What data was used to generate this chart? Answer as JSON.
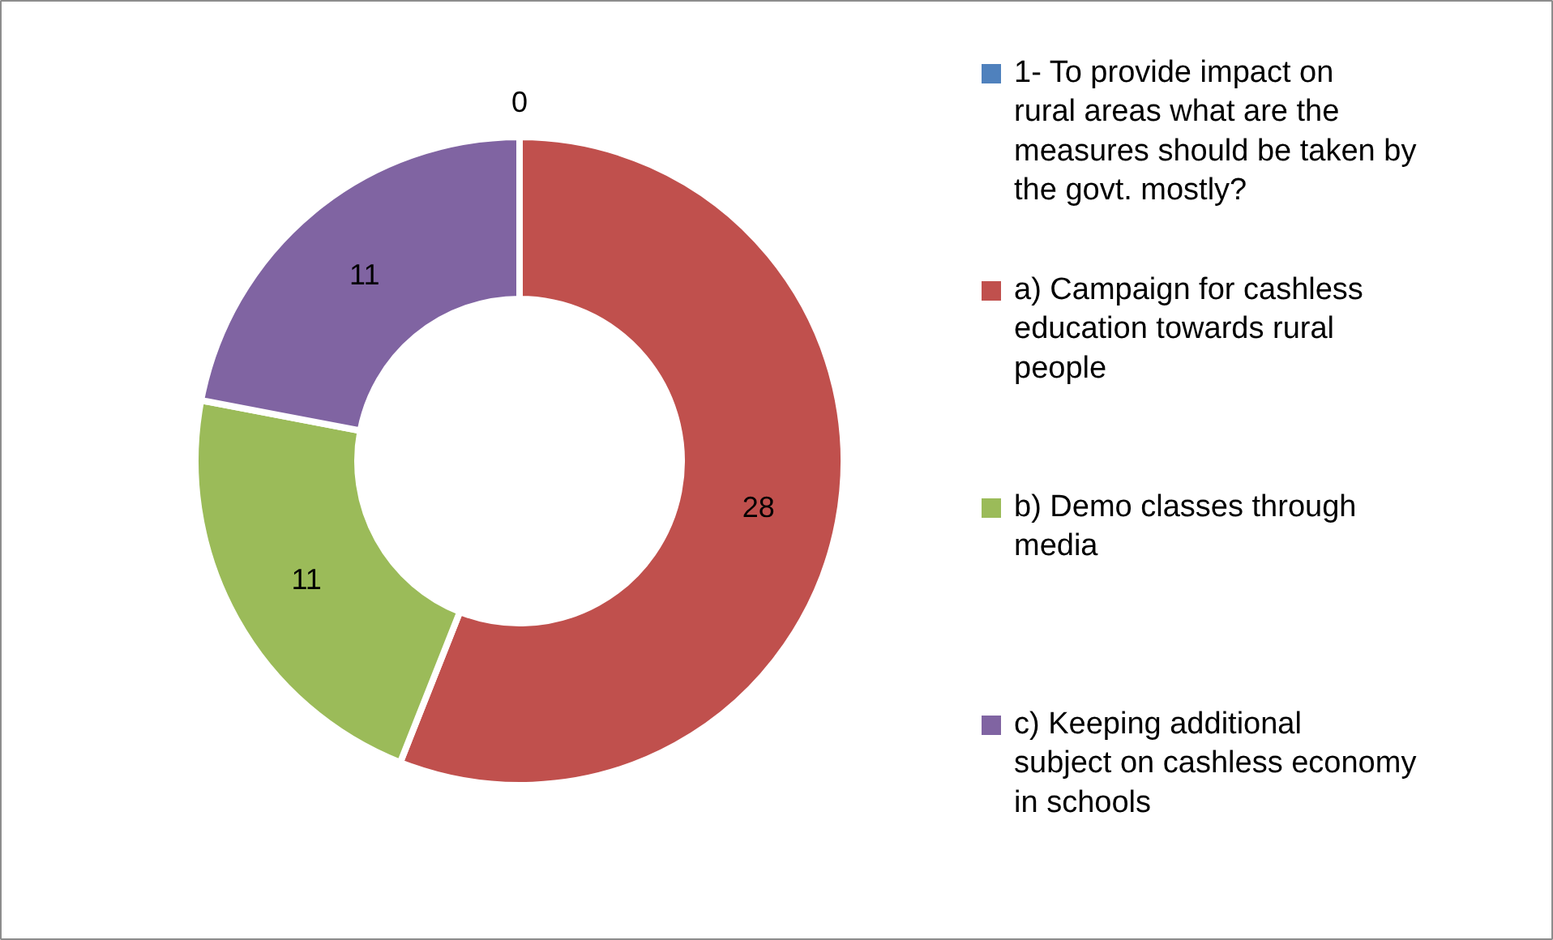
{
  "chart_data": {
    "type": "donut",
    "categories": [
      "1- To provide impact on rural areas what are the measures should be taken by the govt. mostly?",
      "a) Campaign for cashless education towards rural people",
      "b) Demo classes through media",
      "c) Keeping additional subject on cashless economy in schools"
    ],
    "values": [
      0,
      28,
      11,
      11
    ],
    "colors": [
      "#4f81bd",
      "#c0504d",
      "#9bbb59",
      "#8064a2"
    ],
    "value_labels": [
      "0",
      "28",
      "11",
      "11"
    ],
    "legend": "right"
  }
}
